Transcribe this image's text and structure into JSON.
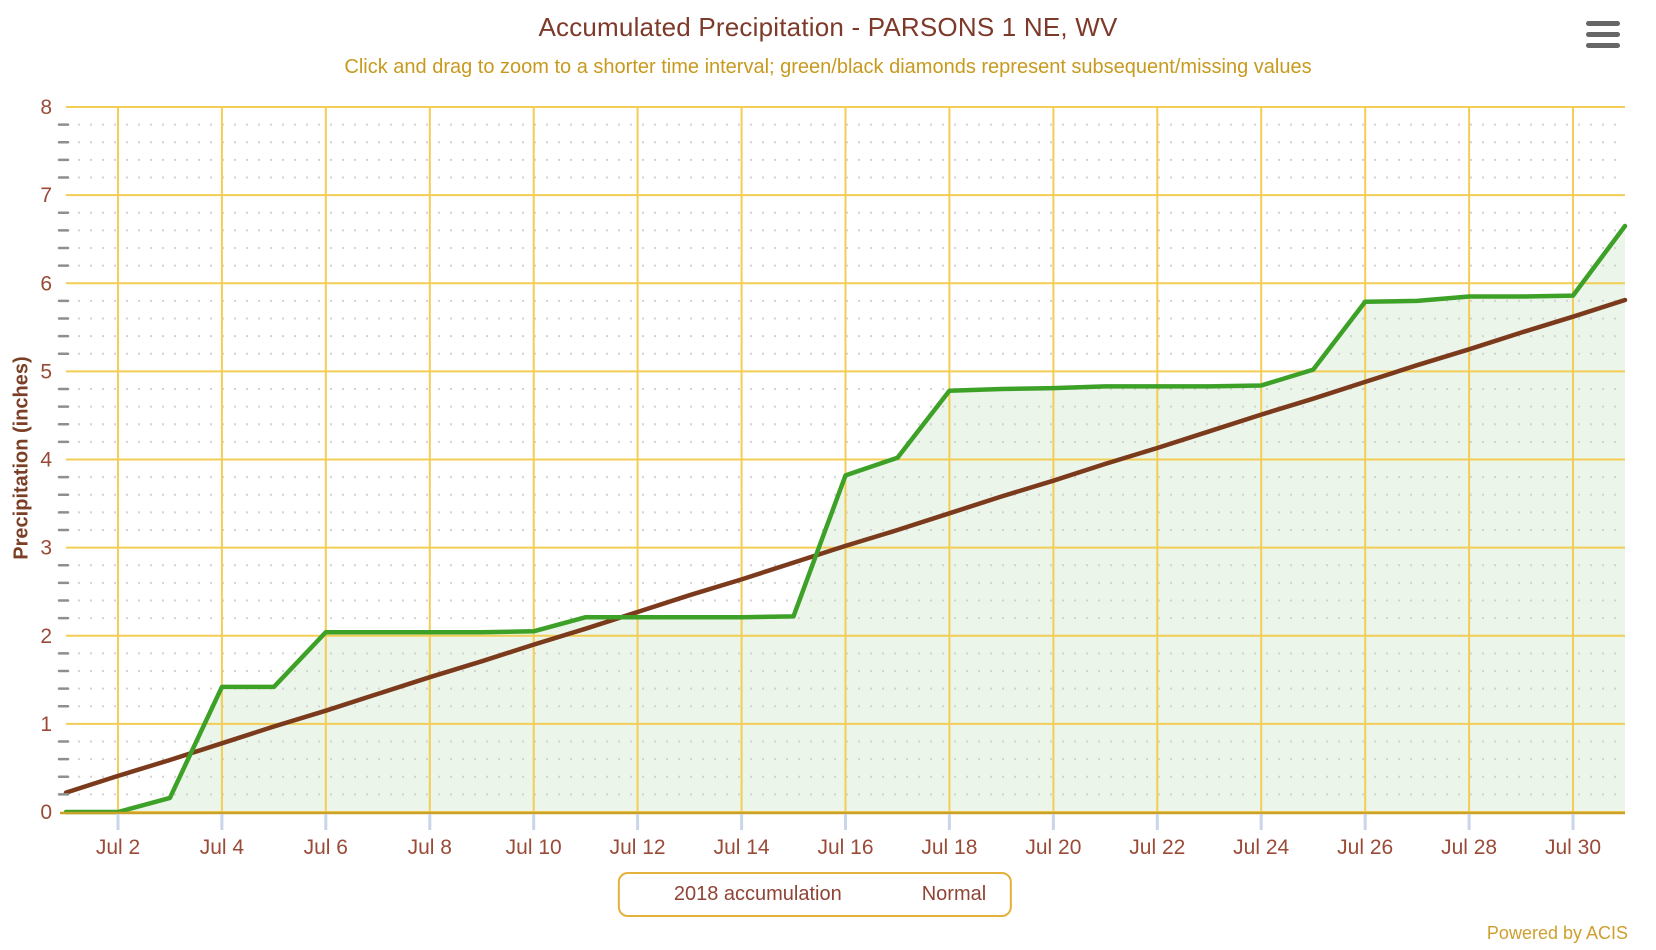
{
  "chart": {
    "title": "Accumulated Precipitation - PARSONS 1 NE, WV",
    "subtitle": "Click and drag to zoom to a shorter time interval; green/black diamonds represent subsequent/missing values",
    "ylabel": "Precipitation (inches)",
    "credits": "Powered by ACIS",
    "menu_icon": "hamburger-icon"
  },
  "legend": {
    "position": "bottom-center",
    "items": [
      {
        "label": "2018 accumulation",
        "marker": "circle",
        "color": "#3da128"
      },
      {
        "label": "Normal",
        "marker": "line",
        "color": "#7c3a1d"
      }
    ]
  },
  "colors": {
    "title_text": "#7d3a2a",
    "subtitle_text": "#c79a1e",
    "axis_label_text": "#9a4b38",
    "major_grid": "#f3cd55",
    "minor_grid": "#d2d2d2",
    "x_axis_line": "#c9a227",
    "x_tick_mark": "#c9d6ea",
    "y_minor_tick": "#8f8f8f",
    "accum_line": "#3da128",
    "accum_fill": "rgba(61,161,40,0.10)",
    "normal_line": "#7c3a1d"
  },
  "chart_data": {
    "type": "area",
    "title": "Accumulated Precipitation - PARSONS 1 NE, WV",
    "subtitle": "Click and drag to zoom to a shorter time interval; green/black diamonds represent subsequent/missing values",
    "xlabel": "",
    "ylabel": "Precipitation (inches)",
    "ylim": [
      0,
      8
    ],
    "y_major_step": 1,
    "y_minor_step": 0.2,
    "y_tick_labels": [
      "0",
      "1",
      "2",
      "3",
      "4",
      "5",
      "6",
      "7",
      "8"
    ],
    "x_range_days": [
      1,
      31
    ],
    "x_tick_days": [
      2,
      4,
      6,
      8,
      10,
      12,
      14,
      16,
      18,
      20,
      22,
      24,
      26,
      28,
      30
    ],
    "x_tick_labels": [
      "Jul 2",
      "Jul 4",
      "Jul 6",
      "Jul 8",
      "Jul 10",
      "Jul 12",
      "Jul 14",
      "Jul 16",
      "Jul 18",
      "Jul 20",
      "Jul 22",
      "Jul 24",
      "Jul 26",
      "Jul 28",
      "Jul 30"
    ],
    "grid": true,
    "legend_position": "bottom-center",
    "series": [
      {
        "name": "2018 accumulation",
        "type": "area",
        "color": "#3da128",
        "x_days": [
          1,
          2,
          3,
          4,
          5,
          6,
          7,
          8,
          9,
          10,
          11,
          12,
          13,
          14,
          15,
          16,
          17,
          18,
          19,
          20,
          21,
          22,
          23,
          24,
          25,
          26,
          27,
          28,
          29,
          30,
          31
        ],
        "values": [
          0.0,
          0.0,
          0.16,
          1.42,
          1.42,
          2.04,
          2.04,
          2.04,
          2.04,
          2.05,
          2.21,
          2.21,
          2.21,
          2.21,
          2.22,
          3.82,
          4.02,
          4.78,
          4.8,
          4.81,
          4.83,
          4.83,
          4.83,
          4.84,
          5.02,
          5.79,
          5.8,
          5.85,
          5.85,
          5.86,
          6.65
        ]
      },
      {
        "name": "Normal",
        "type": "line",
        "color": "#7c3a1d",
        "x_days": [
          1,
          2,
          3,
          4,
          5,
          6,
          7,
          8,
          9,
          10,
          11,
          12,
          13,
          14,
          15,
          16,
          17,
          18,
          19,
          20,
          21,
          22,
          23,
          24,
          25,
          26,
          27,
          28,
          29,
          30,
          31
        ],
        "values": [
          0.22,
          0.41,
          0.59,
          0.78,
          0.97,
          1.15,
          1.34,
          1.53,
          1.71,
          1.9,
          2.08,
          2.27,
          2.46,
          2.64,
          2.83,
          3.02,
          3.2,
          3.39,
          3.58,
          3.76,
          3.95,
          4.13,
          4.32,
          4.51,
          4.69,
          4.88,
          5.07,
          5.25,
          5.44,
          5.62,
          5.81
        ]
      }
    ]
  }
}
